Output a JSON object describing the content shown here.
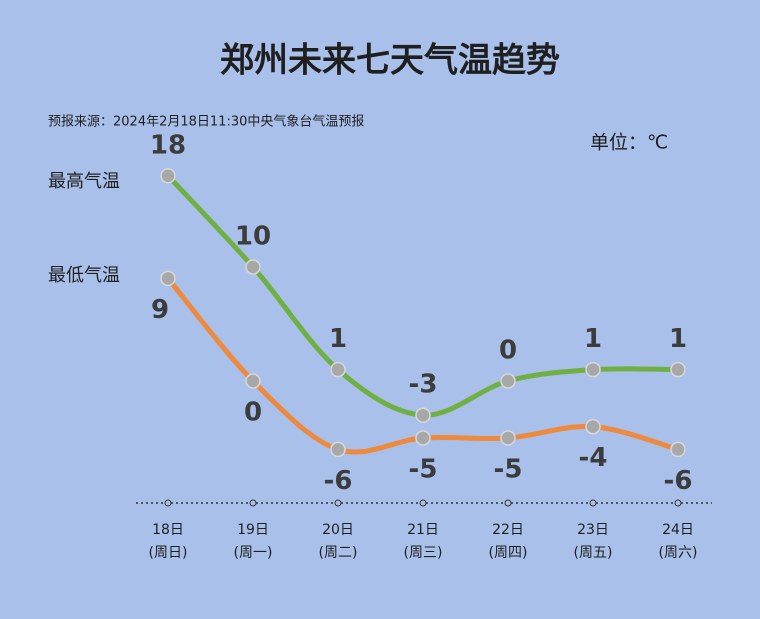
{
  "chart_data": {
    "type": "line",
    "title": "郑州未来七天气温趋势",
    "subtitle": "预报来源：2024年2月18日11:30中央气象台气温预报",
    "unit_label": "单位：℃",
    "categories": [
      "18日",
      "19日",
      "20日",
      "21日",
      "22日",
      "23日",
      "24日"
    ],
    "weekdays": [
      "(周日)",
      "(周一)",
      "(周二)",
      "(周三)",
      "(周四)",
      "(周五)",
      "(周六)"
    ],
    "series": [
      {
        "name": "最高气温",
        "color": "#70b043",
        "values": [
          18,
          10,
          1,
          -3,
          0,
          1,
          1
        ]
      },
      {
        "name": "最低气温",
        "color": "#ee8a3d",
        "values": [
          9,
          0,
          -6,
          -5,
          -5,
          -4,
          -6
        ]
      }
    ],
    "ylim": [
      -10,
      20
    ]
  }
}
